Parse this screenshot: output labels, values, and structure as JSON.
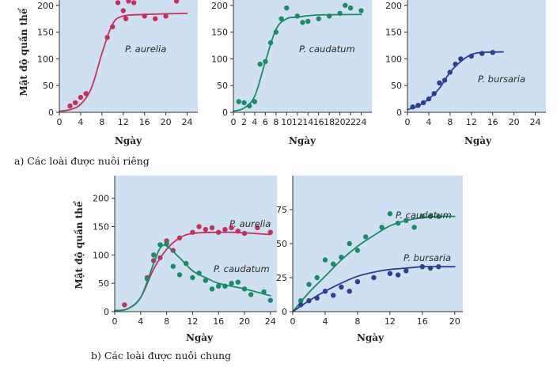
{
  "colors": {
    "aurelia": "#c4305b",
    "caudatum": "#1c8a66",
    "bursaria": "#2d3f8f",
    "plot_bg": "#cfe0f3"
  },
  "captions": {
    "a": "a)  Các loài được nuôi riêng",
    "b": "b)  Các loài được nuôi chung"
  },
  "chart_data": [
    {
      "id": "a1",
      "type": "scatter",
      "xlabel": "Ngày",
      "ylabel": "Mật độ quần thể",
      "xlim": [
        0,
        26
      ],
      "ylim": [
        0,
        210
      ],
      "xticks": [
        0,
        4,
        8,
        12,
        16,
        20,
        24
      ],
      "yticks": [
        0,
        50,
        100,
        150,
        200
      ],
      "series": [
        {
          "name": "P. aurelia",
          "color": "aurelia",
          "points": [
            [
              2,
              12
            ],
            [
              3,
              18
            ],
            [
              4,
              28
            ],
            [
              5,
              35
            ],
            [
              9,
              140
            ],
            [
              10,
              160
            ],
            [
              11,
              205
            ],
            [
              12,
              190
            ],
            [
              12.5,
              175
            ],
            [
              13,
              208
            ],
            [
              14,
              205
            ],
            [
              16,
              180
            ],
            [
              18,
              175
            ],
            [
              20,
              180
            ],
            [
              22,
              208
            ]
          ],
          "curve": [
            [
              0,
              2
            ],
            [
              2,
              5
            ],
            [
              4,
              15
            ],
            [
              6,
              45
            ],
            [
              8,
              110
            ],
            [
              10,
              165
            ],
            [
              12,
              180
            ],
            [
              16,
              183
            ],
            [
              24,
              185
            ]
          ]
        }
      ]
    },
    {
      "id": "a2",
      "type": "scatter",
      "xlabel": "Ngày",
      "ylabel": "",
      "xlim": [
        0,
        26
      ],
      "ylim": [
        0,
        210
      ],
      "xticks": [
        0,
        2,
        4,
        6,
        8,
        10,
        12,
        14,
        16,
        18,
        20,
        22,
        24
      ],
      "yticks": [
        0,
        50,
        100,
        150,
        200
      ],
      "series": [
        {
          "name": "P. caudatum",
          "color": "caudatum",
          "points": [
            [
              1,
              20
            ],
            [
              2,
              18
            ],
            [
              3,
              12
            ],
            [
              4,
              20
            ],
            [
              5,
              90
            ],
            [
              6,
              95
            ],
            [
              7,
              130
            ],
            [
              8,
              150
            ],
            [
              9,
              175
            ],
            [
              10,
              195
            ],
            [
              12,
              180
            ],
            [
              13,
              168
            ],
            [
              14,
              170
            ],
            [
              16,
              175
            ],
            [
              18,
              180
            ],
            [
              20,
              185
            ],
            [
              21,
              200
            ],
            [
              22,
              195
            ],
            [
              24,
              190
            ]
          ],
          "curve": [
            [
              0,
              2
            ],
            [
              2,
              8
            ],
            [
              4,
              30
            ],
            [
              6,
              95
            ],
            [
              8,
              155
            ],
            [
              10,
              175
            ],
            [
              12,
              178
            ],
            [
              16,
              182
            ],
            [
              24,
              183
            ]
          ]
        }
      ]
    },
    {
      "id": "a3",
      "type": "scatter",
      "xlabel": "Ngày",
      "ylabel": "",
      "xlim": [
        0,
        26
      ],
      "ylim": [
        0,
        210
      ],
      "xticks": [
        0,
        4,
        8,
        12,
        16,
        20,
        24
      ],
      "yticks": [
        0,
        50,
        100,
        150,
        200
      ],
      "series": [
        {
          "name": "P. bursaria",
          "color": "bursaria",
          "points": [
            [
              1,
              10
            ],
            [
              2,
              13
            ],
            [
              3,
              18
            ],
            [
              4,
              25
            ],
            [
              5,
              35
            ],
            [
              6,
              55
            ],
            [
              7,
              60
            ],
            [
              8,
              75
            ],
            [
              9,
              90
            ],
            [
              10,
              100
            ],
            [
              12,
              105
            ],
            [
              14,
              110
            ],
            [
              16,
              112
            ]
          ],
          "curve": [
            [
              0,
              5
            ],
            [
              2,
              12
            ],
            [
              4,
              25
            ],
            [
              6,
              45
            ],
            [
              8,
              75
            ],
            [
              10,
              95
            ],
            [
              12,
              108
            ],
            [
              14,
              112
            ],
            [
              18,
              113
            ]
          ]
        }
      ]
    },
    {
      "id": "b1",
      "type": "scatter",
      "xlabel": "Ngày",
      "ylabel": "Mật độ quần thể",
      "xlim": [
        0,
        25
      ],
      "ylim": [
        0,
        240
      ],
      "xticks": [
        0,
        4,
        8,
        12,
        16,
        20,
        24
      ],
      "yticks": [
        0,
        50,
        100,
        150,
        200
      ],
      "series": [
        {
          "name": "P. aurelia",
          "color": "aurelia",
          "points": [
            [
              1.5,
              12
            ],
            [
              5,
              60
            ],
            [
              6,
              90
            ],
            [
              7,
              95
            ],
            [
              8,
              125
            ],
            [
              9,
              108
            ],
            [
              10,
              130
            ],
            [
              12,
              140
            ],
            [
              13,
              150
            ],
            [
              14,
              145
            ],
            [
              15,
              148
            ],
            [
              16,
              140
            ],
            [
              17,
              145
            ],
            [
              18,
              148
            ],
            [
              19,
              142
            ],
            [
              20,
              138
            ],
            [
              22,
              148
            ],
            [
              24,
              140
            ]
          ],
          "curve": [
            [
              0,
              2
            ],
            [
              2,
              5
            ],
            [
              4,
              25
            ],
            [
              6,
              75
            ],
            [
              8,
              110
            ],
            [
              10,
              130
            ],
            [
              12,
              138
            ],
            [
              16,
              140
            ],
            [
              20,
              139
            ],
            [
              24,
              136
            ]
          ]
        },
        {
          "name": "P. caudatum",
          "color": "caudatum",
          "points": [
            [
              5,
              58
            ],
            [
              6,
              100
            ],
            [
              7,
              118
            ],
            [
              8,
              120
            ],
            [
              9,
              80
            ],
            [
              10,
              65
            ],
            [
              11,
              85
            ],
            [
              12,
              60
            ],
            [
              13,
              68
            ],
            [
              14,
              55
            ],
            [
              15,
              40
            ],
            [
              16,
              45
            ],
            [
              17,
              45
            ],
            [
              18,
              50
            ],
            [
              19,
              52
            ],
            [
              20,
              40
            ],
            [
              21,
              30
            ],
            [
              23,
              35
            ],
            [
              24,
              20
            ]
          ],
          "curve": [
            [
              0,
              2
            ],
            [
              2,
              5
            ],
            [
              4,
              25
            ],
            [
              6,
              85
            ],
            [
              7,
              112
            ],
            [
              8,
              116
            ],
            [
              10,
              95
            ],
            [
              12,
              72
            ],
            [
              14,
              60
            ],
            [
              16,
              50
            ],
            [
              20,
              40
            ],
            [
              24,
              28
            ]
          ]
        }
      ]
    },
    {
      "id": "b2",
      "type": "scatter",
      "xlabel": "Ngày",
      "ylabel": "",
      "xlim": [
        0,
        21
      ],
      "ylim": [
        0,
        100
      ],
      "xticks": [
        0,
        4,
        8,
        12,
        16,
        20
      ],
      "yticks": [
        0,
        25,
        50,
        75
      ],
      "series": [
        {
          "name": "P. caudatum",
          "color": "caudatum",
          "points": [
            [
              1,
              8
            ],
            [
              2,
              20
            ],
            [
              3,
              25
            ],
            [
              4,
              38
            ],
            [
              5,
              35
            ],
            [
              6,
              40
            ],
            [
              7,
              50
            ],
            [
              8,
              45
            ],
            [
              9,
              55
            ],
            [
              11,
              62
            ],
            [
              12,
              72
            ],
            [
              13,
              65
            ],
            [
              14,
              67
            ],
            [
              15,
              62
            ],
            [
              16,
              70
            ],
            [
              17,
              70
            ],
            [
              18,
              70
            ]
          ],
          "curve": [
            [
              0,
              0
            ],
            [
              2,
              14
            ],
            [
              4,
              26
            ],
            [
              6,
              38
            ],
            [
              8,
              48
            ],
            [
              10,
              56
            ],
            [
              12,
              63
            ],
            [
              14,
              67
            ],
            [
              16,
              69
            ],
            [
              18,
              70
            ],
            [
              20,
              70
            ]
          ]
        },
        {
          "name": "P. bursaria",
          "color": "bursaria",
          "points": [
            [
              1,
              5
            ],
            [
              2,
              8
            ],
            [
              3,
              10
            ],
            [
              4,
              15
            ],
            [
              5,
              12
            ],
            [
              6,
              18
            ],
            [
              7,
              15
            ],
            [
              8,
              22
            ],
            [
              10,
              25
            ],
            [
              12,
              28
            ],
            [
              13,
              27
            ],
            [
              14,
              30
            ],
            [
              16,
              33
            ],
            [
              17,
              32
            ],
            [
              18,
              33
            ]
          ],
          "curve": [
            [
              0,
              0
            ],
            [
              2,
              8
            ],
            [
              4,
              15
            ],
            [
              6,
              21
            ],
            [
              8,
              26
            ],
            [
              10,
              29
            ],
            [
              12,
              31
            ],
            [
              14,
              32
            ],
            [
              16,
              33
            ],
            [
              18,
              33
            ],
            [
              20,
              33
            ]
          ]
        }
      ]
    }
  ]
}
